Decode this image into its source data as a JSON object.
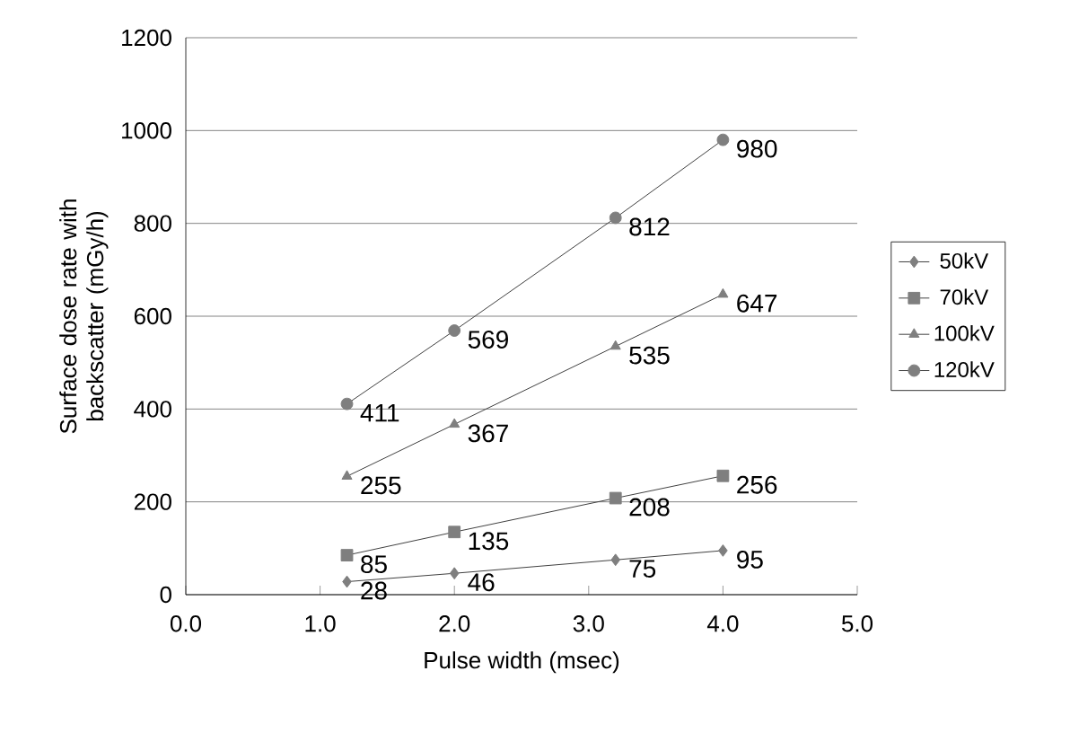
{
  "chart_data": {
    "type": "line",
    "xlabel": "Pulse width (msec)",
    "ylabel": "Surface dose rate with backscatter (mGy/h)",
    "x": [
      1.2,
      2.0,
      3.2,
      4.0
    ],
    "series": [
      {
        "name": "50kV",
        "color": "#7f7f7f",
        "marker": "diamond",
        "values": [
          28,
          46,
          75,
          95
        ]
      },
      {
        "name": "70kV",
        "color": "#7f7f7f",
        "marker": "square",
        "values": [
          85,
          135,
          208,
          256
        ]
      },
      {
        "name": "100kV",
        "color": "#7f7f7f",
        "marker": "triangle",
        "values": [
          255,
          367,
          535,
          647
        ]
      },
      {
        "name": "120kV",
        "color": "#7f7f7f",
        "marker": "circle",
        "values": [
          411,
          569,
          812,
          980
        ]
      }
    ],
    "xlim": [
      0,
      5
    ],
    "xticks": [
      {
        "value": 0,
        "label": "0.0"
      },
      {
        "value": 1,
        "label": "1.0"
      },
      {
        "value": 2,
        "label": "2.0"
      },
      {
        "value": 3,
        "label": "3.0"
      },
      {
        "value": 4,
        "label": "4.0"
      },
      {
        "value": 5,
        "label": "5.0"
      }
    ],
    "ylim": [
      0,
      1200
    ],
    "yticks": [
      0,
      200,
      400,
      600,
      800,
      1000,
      1200
    ],
    "grid": "y",
    "legend": "right",
    "data_labels": true,
    "line_style": "solid"
  }
}
